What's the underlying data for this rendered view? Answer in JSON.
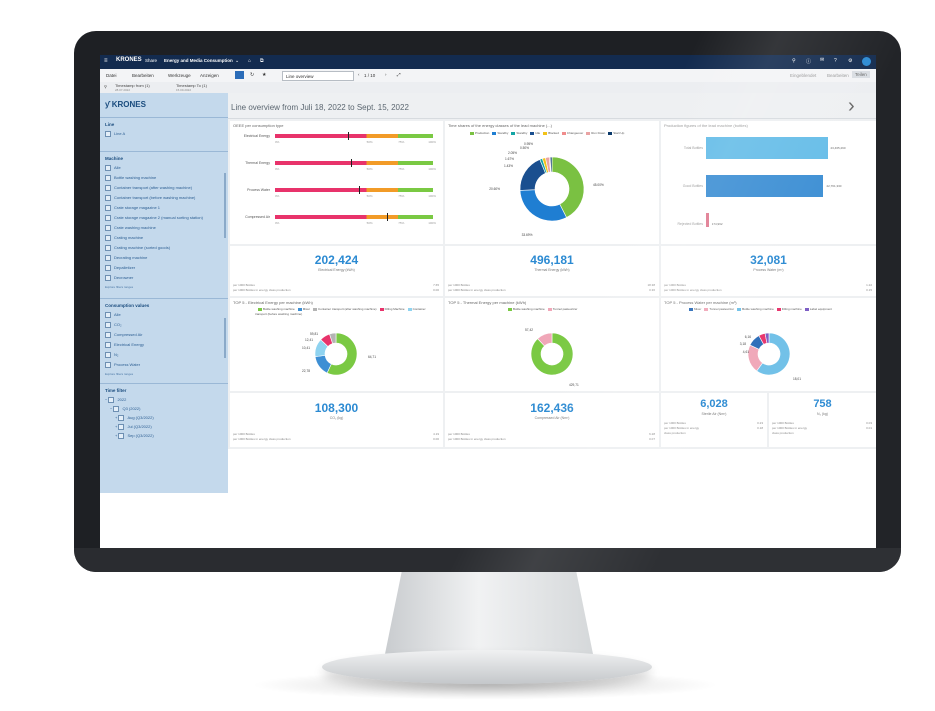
{
  "window": {
    "title": "Energy and Media Consumption",
    "brand": "KRONES",
    "app": "Share"
  },
  "menu": {
    "items": [
      "Datei",
      "Bearbeiten",
      "Werkzeuge",
      "Anzeigen"
    ],
    "page_select": "Line overview",
    "page_counter": "1 / 10",
    "right_items": [
      "Eingeblendet",
      "Bearbeiten",
      "Teilen"
    ]
  },
  "tabs": [
    {
      "label": "Timestamp from (1)",
      "sub": "28.07.2022"
    },
    {
      "label": "Timestamp To (1)",
      "sub": "15.09.2022"
    }
  ],
  "sidebar": {
    "logo": "KRONES",
    "line": {
      "title": "Line",
      "items": [
        "Line A"
      ]
    },
    "machine": {
      "title": "Machine",
      "items": [
        "Alle",
        "Bottle washing machine",
        "Container transport (after washing machine)",
        "Container transport (before washing machine)",
        "Crate storage magazine 1",
        "Crate storage magazine 2 (manual sorting station)",
        "Crate washing machine",
        "Crating machine",
        "Crating machine (sorted goods)",
        "Decrating machine",
        "Depalletizer",
        "Decrowner"
      ],
      "footer": "Explore filters ranges"
    },
    "consumption": {
      "title": "Consumption values",
      "items": [
        "Alle",
        "CO₂",
        "Compressed Air",
        "Electrical Energy",
        "N₂",
        "Process Water"
      ],
      "footer": "Explore filters ranges"
    },
    "time": {
      "title": "Time filter",
      "items": [
        "2022",
        "Q3 (2022)",
        "Aug (Q3/2022)",
        "Jul (Q3/2022)",
        "Sep (Q3/2022)"
      ]
    }
  },
  "header": {
    "title": "Line overview from Juli 18, 2022 to Sept. 15, 2022"
  },
  "cards": {
    "oee": {
      "title": "OEEE per consumption type",
      "rows": [
        {
          "label": "Electrical Energy",
          "marker": 0.46,
          "start": "0%",
          "ticks": [
            "50%",
            "75%",
            "100%"
          ]
        },
        {
          "label": "Thermal Energy",
          "marker": 0.48,
          "start": "0%",
          "ticks": [
            "50%",
            "75%",
            "100%"
          ]
        },
        {
          "label": "Process Water",
          "marker": 0.53,
          "start": "0%",
          "ticks": [
            "50%",
            "75%",
            "100%"
          ]
        },
        {
          "label": "Compressed Air",
          "marker": 0.71,
          "start": "0%",
          "ticks": [
            "50%",
            "75%",
            "100%"
          ]
        }
      ],
      "colors": {
        "low": "#e8336b",
        "mid": "#f29b27",
        "high": "#7ac943"
      }
    },
    "time_shares": {
      "title": "Time shares of the energy classes of the lead machine (...)",
      "legend": [
        {
          "label": "Production",
          "color": "#7ac142"
        },
        {
          "label": "Standby",
          "color": "#1f7ed2"
        },
        {
          "label": "Standby",
          "color": "#14a5a5"
        },
        {
          "label": "Idle",
          "color": "#1a4f8f"
        },
        {
          "label": "Blocked",
          "color": "#f2c218"
        },
        {
          "label": "Changeover",
          "color": "#f08c8c"
        },
        {
          "label": "Run Down",
          "color": "#e9a3a3"
        },
        {
          "label": "Start Up",
          "color": "#0b3a6b"
        }
      ],
      "slice_labels": [
        "45.00%",
        "33.69%",
        "20.60%",
        "1.43%",
        "1.67%",
        "2.05%",
        "0.50%",
        "0.95%"
      ]
    },
    "production": {
      "title": "Production figures of the lead machine (bottles)",
      "bars": [
        {
          "label": "Total Bottles",
          "value": "23,465,290",
          "color": "#66bde8"
        },
        {
          "label": "Good Bottles",
          "value": "22,761,330",
          "color": "#3d8fd4"
        },
        {
          "label": "Rejected Bottles",
          "value": "174,962",
          "color": "#e07b91"
        }
      ]
    },
    "kpi1": {
      "value": "202,424",
      "label": "Electrical Energy (kWh)",
      "r1": "per 1000 Bottles",
      "r1v": "7.65",
      "r2": "per 1000 Bottles in energy class production",
      "r2v": "0.00"
    },
    "kpi2": {
      "value": "496,181",
      "label": "Thermal Energy (kWh)",
      "r1": "per 1000 Bottles",
      "r1v": "18.38",
      "r2": "per 1000 Bottles in energy class production",
      "r2v": "0.36"
    },
    "kpi3": {
      "value": "32,081",
      "label": "Process Water (m³)",
      "r1": "per 1000 Bottles",
      "r1v": "1.22",
      "r2": "per 1000 Bottles in energy class production",
      "r2v": "0.15"
    },
    "top5_elec": {
      "title": "TOP 5 - Electrical Energy per machine (kWh)",
      "legend": [
        {
          "label": "Bottle washing machine",
          "color": "#7ac943"
        },
        {
          "label": "Mixer",
          "color": "#3d8fd4"
        },
        {
          "label": "Container transport (after washing machine)",
          "color": "#b4b4b4"
        },
        {
          "label": "Filling Machine",
          "color": "#e8336b"
        },
        {
          "label": "Container transport (before washing machine)",
          "color": "#8fd3f0"
        }
      ],
      "labels": [
        "64,71",
        "22,78",
        "10,41",
        "12,41",
        "59,81"
      ]
    },
    "top5_therm": {
      "title": "TOP 5 - Thermal Energy per machine (kWh)",
      "legend": [
        {
          "label": "Bottle washing machine",
          "color": "#7ac943"
        },
        {
          "label": "Tunnel pasteurizer",
          "color": "#f0a7b8"
        }
      ],
      "labels": [
        "57,42",
        "429,71"
      ]
    },
    "top5_water": {
      "title": "TOP 5 - Process Water per machine (m³)",
      "legend": [
        {
          "label": "Mixer",
          "color": "#2b6cb8"
        },
        {
          "label": "Tunnel pasteurizer",
          "color": "#f0a7b8"
        },
        {
          "label": "Bottle washing machine",
          "color": "#6fc0e8"
        },
        {
          "label": "Filling machine",
          "color": "#e8336b"
        },
        {
          "label": "Label equipment",
          "color": "#7b5cc4"
        }
      ],
      "labels": [
        "6,16",
        "3,18",
        "4,61",
        "18,01"
      ]
    },
    "kpi4": {
      "value": "108,300",
      "label": "CO₂ (kg)",
      "r1": "per 1000 Bottles",
      "r1v": "4.19",
      "r2": "per 1000 Bottles in energy class production",
      "r2v": "0.00"
    },
    "kpi5": {
      "value": "162,436",
      "label": "Compressed Air (Nm³)",
      "r1": "per 1000 Bottles",
      "r1v": "6.28",
      "r2": "per 1000 Bottles in energy class production",
      "r2v": "0.07"
    },
    "kpi6": {
      "value": "6,028",
      "label": "Sterile Air (Nm³)",
      "r1": "per 1000 Bottles",
      "r1v": "0.23",
      "r2": "per 1000 Bottles in energy",
      "r2v": "0.18",
      "r3": "class production"
    },
    "kpi7": {
      "value": "758",
      "label": "N₂ (kg)",
      "r1": "per 1000 Bottles",
      "r1v": "0.03",
      "r2": "per 1000 Bottles in energy",
      "r2v": "0.01",
      "r3": "class production"
    }
  }
}
